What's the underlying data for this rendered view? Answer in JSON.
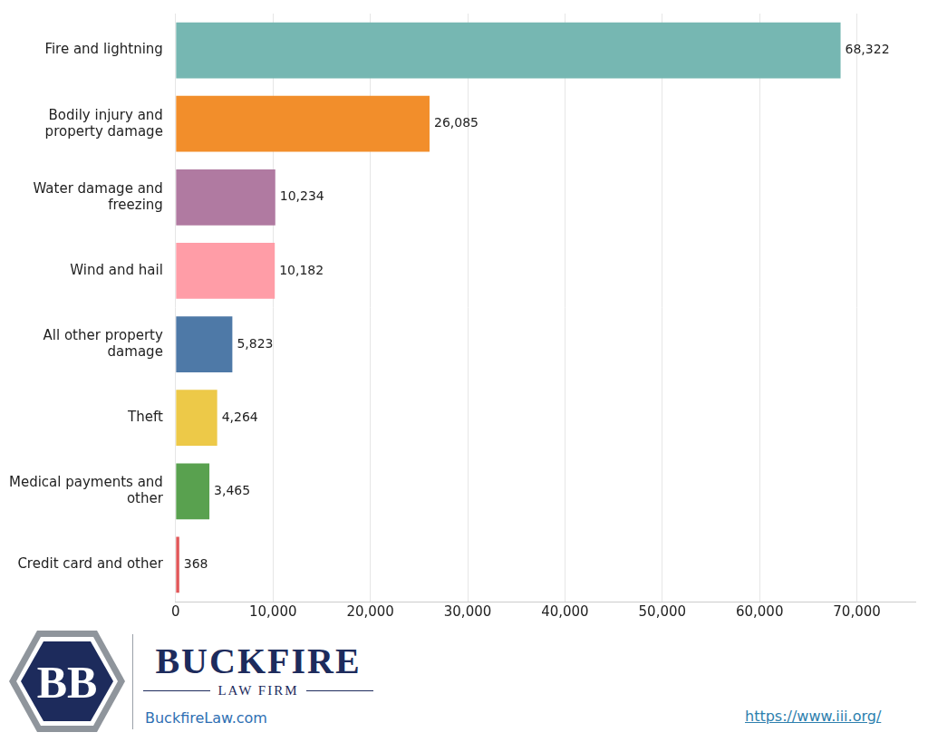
{
  "chart_data": {
    "type": "bar",
    "orientation": "horizontal",
    "categories": [
      "Fire and lightning",
      "Bodily injury and property damage",
      "Water damage and freezing",
      "Wind and hail",
      "All other property damage",
      "Theft",
      "Medical payments and other",
      "Credit card and other"
    ],
    "values": [
      68322,
      26085,
      10234,
      10182,
      5823,
      4264,
      3465,
      368
    ],
    "value_labels": [
      "68,322",
      "26,085",
      "10,234",
      "10,182",
      "5,823",
      "4,264",
      "3,465",
      "368"
    ],
    "colors": [
      "#76b7b2",
      "#f28e2b",
      "#b07aa1",
      "#ff9da7",
      "#4e79a7",
      "#edc948",
      "#59a14f",
      "#e15759"
    ],
    "xlim": [
      0,
      76000
    ],
    "xticks": [
      0,
      {
        "value": 10000,
        "label": "10,000"
      },
      {
        "value": 20000,
        "label": "20,000"
      },
      {
        "value": 30000,
        "label": "30,000"
      },
      {
        "value": 40000,
        "label": "40,000"
      },
      {
        "value": 50000,
        "label": "50,000"
      },
      {
        "value": 60000,
        "label": "60,000"
      },
      {
        "value": 70000,
        "label": "70,000"
      }
    ],
    "grid": true,
    "data_labels": true
  },
  "footer": {
    "logo": {
      "monogram": "BB",
      "name": "BUCKFIRE",
      "tagline": "LAW FIRM",
      "website": "BuckfireLaw.com"
    },
    "source": "https://www.iii.org/"
  }
}
